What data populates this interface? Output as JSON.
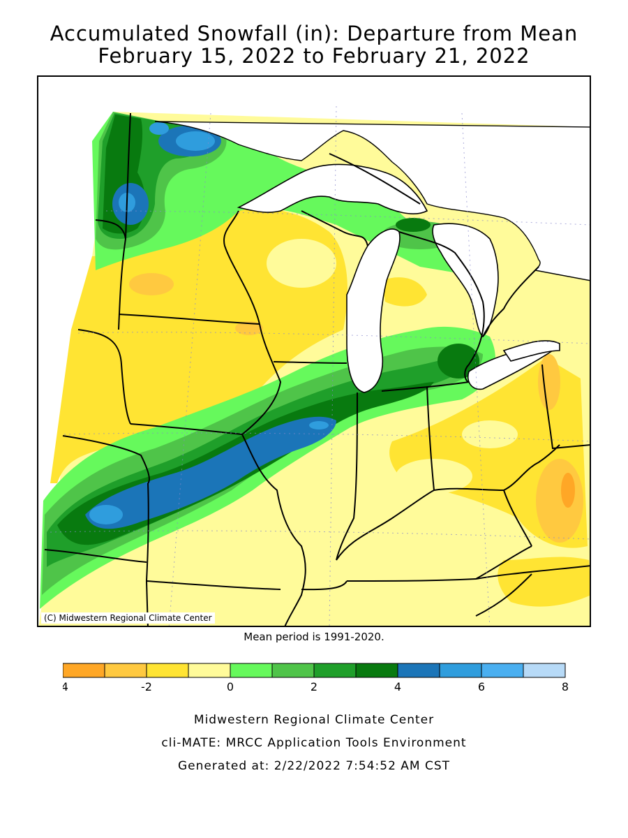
{
  "title_line1": "Accumulated Snowfall (in): Departure from Mean",
  "title_line2": "February 15, 2022 to February 21, 2022",
  "copyright": "(C) Midwestern Regional Climate Center",
  "mean_note": "Mean period is 1991-2020.",
  "legend": {
    "bins": [
      {
        "from": -4,
        "to": -3,
        "color": "#ffa726"
      },
      {
        "from": -3,
        "to": -2,
        "color": "#ffc940"
      },
      {
        "from": -2,
        "to": -1,
        "color": "#ffe433"
      },
      {
        "from": -1,
        "to": 0,
        "color": "#fffb9a"
      },
      {
        "from": 0,
        "to": 1,
        "color": "#66f95c"
      },
      {
        "from": 1,
        "to": 2,
        "color": "#4fc449"
      },
      {
        "from": 2,
        "to": 3,
        "color": "#1f9f2a"
      },
      {
        "from": 3,
        "to": 4,
        "color": "#087a0f"
      },
      {
        "from": 4,
        "to": 5,
        "color": "#1b75b8"
      },
      {
        "from": 5,
        "to": 6,
        "color": "#2f9ddd"
      },
      {
        "from": 6,
        "to": 7,
        "color": "#4aaff0"
      },
      {
        "from": 7,
        "to": 8,
        "color": "#b7daf7"
      }
    ],
    "tick_labels": [
      "-4",
      "-2",
      "0",
      "2",
      "4",
      "6",
      "8"
    ]
  },
  "footer_line1": "Midwestern Regional Climate Center",
  "footer_line2": "cli-MATE: MRCC Application Tools Environment",
  "footer_line3": "Generated at: 2/22/2022 7:54:52 AM CST"
}
